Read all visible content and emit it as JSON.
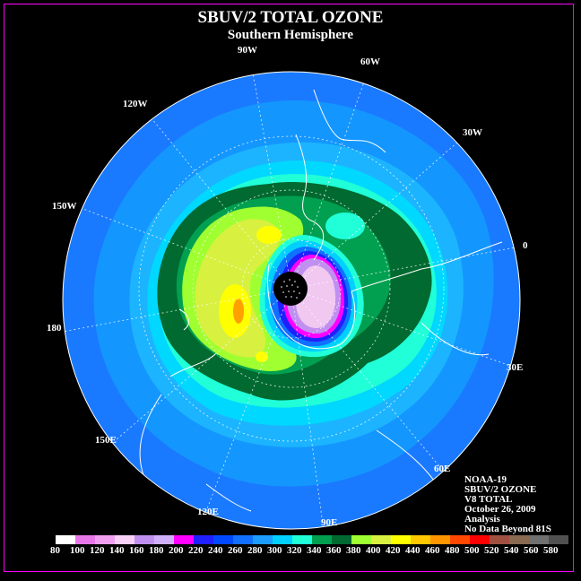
{
  "header": {
    "title": "SBUV/2 TOTAL OZONE",
    "subtitle": "Southern Hemisphere"
  },
  "longitude_labels": [
    "90W",
    "60W",
    "30W",
    "0",
    "30E",
    "60E",
    "90E",
    "120E",
    "150E",
    "180",
    "150W",
    "120W"
  ],
  "info": {
    "line1": "NOAA-19",
    "line2": "SBUV/2 OZONE",
    "line3": "V8 TOTAL",
    "line4": "October 26, 2009",
    "line5": "Analysis",
    "line6": "No Data Beyond 81S"
  },
  "legend": {
    "values": [
      "80",
      "100",
      "120",
      "140",
      "160",
      "180",
      "200",
      "220",
      "240",
      "260",
      "280",
      "300",
      "320",
      "340",
      "360",
      "380",
      "400",
      "420",
      "440",
      "460",
      "480",
      "500",
      "520",
      "540",
      "560",
      "580"
    ],
    "colors": [
      "#ffffff",
      "#e878e8",
      "#f0a0f0",
      "#f8d0f8",
      "#c090f0",
      "#d0b0f8",
      "#ff00ff",
      "#2020ff",
      "#0048ff",
      "#1070ff",
      "#1c9cff",
      "#00d0ff",
      "#20ffd8",
      "#00a050",
      "#006a30",
      "#a0ff30",
      "#d8f040",
      "#ffff00",
      "#ffc800",
      "#ff9600",
      "#ff4800",
      "#ff0000",
      "#a05040",
      "#8a6a50",
      "#707070",
      "#505050"
    ]
  },
  "colors": {
    "background": "#000000",
    "frame": "#ff00ff",
    "ocean_blue": "#1a7aff",
    "light_blue": "#1cb4ff",
    "cyan": "#20ffd8",
    "dark_green": "#006a30",
    "green": "#00a050",
    "yellow_green": "#c8f030",
    "yellow": "#ffff00",
    "orange": "#ffa000",
    "pink": "#ff00ff",
    "light_purple": "#d0b0f8"
  }
}
